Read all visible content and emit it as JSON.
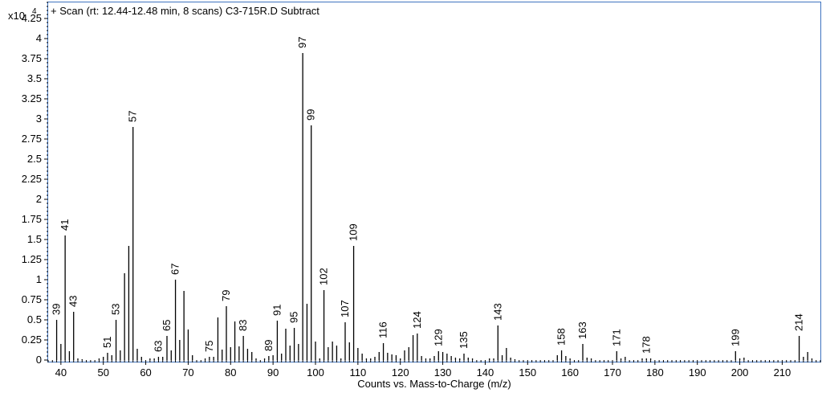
{
  "chart_data": {
    "type": "bar",
    "title": "+ Scan (rt: 12.44-12.48 min, 8 scans) C3-715R.D  Subtract",
    "xlabel": "Counts vs. Mass-to-Charge (m/z)",
    "ylabel": "",
    "y_multiplier_label": "x10",
    "y_multiplier_exponent": "4",
    "xlim": [
      37,
      219
    ],
    "ylim": [
      0,
      4.45
    ],
    "x_ticks": [
      40,
      50,
      60,
      70,
      80,
      90,
      100,
      110,
      120,
      130,
      140,
      150,
      160,
      170,
      180,
      190,
      200,
      210
    ],
    "y_ticks": [
      0,
      0.25,
      0.5,
      0.75,
      1,
      1.25,
      1.5,
      1.75,
      2,
      2.25,
      2.5,
      2.75,
      3,
      3.25,
      3.5,
      3.75,
      4,
      4.25
    ],
    "grid": false,
    "legend": "none",
    "peaks": [
      {
        "mz": 39,
        "intensity": 0.5,
        "label": "39"
      },
      {
        "mz": 40,
        "intensity": 0.2
      },
      {
        "mz": 41,
        "intensity": 1.55,
        "label": "41"
      },
      {
        "mz": 42,
        "intensity": 0.11
      },
      {
        "mz": 43,
        "intensity": 0.6,
        "label": "43"
      },
      {
        "mz": 44,
        "intensity": 0.02
      },
      {
        "mz": 45,
        "intensity": 0.01
      },
      {
        "mz": 49,
        "intensity": 0.02
      },
      {
        "mz": 50,
        "intensity": 0.04
      },
      {
        "mz": 51,
        "intensity": 0.09,
        "label": "51"
      },
      {
        "mz": 52,
        "intensity": 0.06
      },
      {
        "mz": 53,
        "intensity": 0.5,
        "label": "53"
      },
      {
        "mz": 54,
        "intensity": 0.12
      },
      {
        "mz": 55,
        "intensity": 1.08
      },
      {
        "mz": 56,
        "intensity": 1.42
      },
      {
        "mz": 57,
        "intensity": 2.9,
        "label": "57"
      },
      {
        "mz": 58,
        "intensity": 0.14
      },
      {
        "mz": 59,
        "intensity": 0.04
      },
      {
        "mz": 61,
        "intensity": 0.02
      },
      {
        "mz": 62,
        "intensity": 0.02
      },
      {
        "mz": 63,
        "intensity": 0.04,
        "label": "63"
      },
      {
        "mz": 64,
        "intensity": 0.04
      },
      {
        "mz": 65,
        "intensity": 0.3,
        "label": "65"
      },
      {
        "mz": 66,
        "intensity": 0.12
      },
      {
        "mz": 67,
        "intensity": 1.0,
        "label": "67"
      },
      {
        "mz": 68,
        "intensity": 0.25
      },
      {
        "mz": 69,
        "intensity": 0.86
      },
      {
        "mz": 70,
        "intensity": 0.38
      },
      {
        "mz": 71,
        "intensity": 0.06
      },
      {
        "mz": 74,
        "intensity": 0.02
      },
      {
        "mz": 75,
        "intensity": 0.04,
        "label": "75"
      },
      {
        "mz": 76,
        "intensity": 0.04
      },
      {
        "mz": 77,
        "intensity": 0.53
      },
      {
        "mz": 78,
        "intensity": 0.13
      },
      {
        "mz": 79,
        "intensity": 0.67,
        "label": "79"
      },
      {
        "mz": 80,
        "intensity": 0.16
      },
      {
        "mz": 81,
        "intensity": 0.48
      },
      {
        "mz": 82,
        "intensity": 0.17
      },
      {
        "mz": 83,
        "intensity": 0.3,
        "label": "83"
      },
      {
        "mz": 84,
        "intensity": 0.14
      },
      {
        "mz": 85,
        "intensity": 0.1
      },
      {
        "mz": 86,
        "intensity": 0.02
      },
      {
        "mz": 88,
        "intensity": 0.02
      },
      {
        "mz": 89,
        "intensity": 0.05,
        "label": "89"
      },
      {
        "mz": 90,
        "intensity": 0.06
      },
      {
        "mz": 91,
        "intensity": 0.49,
        "label": "91"
      },
      {
        "mz": 92,
        "intensity": 0.08
      },
      {
        "mz": 93,
        "intensity": 0.39
      },
      {
        "mz": 94,
        "intensity": 0.18
      },
      {
        "mz": 95,
        "intensity": 0.4,
        "label": "95"
      },
      {
        "mz": 96,
        "intensity": 0.2
      },
      {
        "mz": 97,
        "intensity": 3.82,
        "label": "97"
      },
      {
        "mz": 98,
        "intensity": 0.7
      },
      {
        "mz": 99,
        "intensity": 2.92,
        "label": "99"
      },
      {
        "mz": 100,
        "intensity": 0.23
      },
      {
        "mz": 101,
        "intensity": 0.02
      },
      {
        "mz": 102,
        "intensity": 0.87,
        "label": "102"
      },
      {
        "mz": 103,
        "intensity": 0.16
      },
      {
        "mz": 104,
        "intensity": 0.23
      },
      {
        "mz": 105,
        "intensity": 0.18
      },
      {
        "mz": 106,
        "intensity": 0.02
      },
      {
        "mz": 107,
        "intensity": 0.47,
        "label": "107"
      },
      {
        "mz": 108,
        "intensity": 0.22
      },
      {
        "mz": 109,
        "intensity": 1.42,
        "label": "109"
      },
      {
        "mz": 110,
        "intensity": 0.15
      },
      {
        "mz": 111,
        "intensity": 0.08
      },
      {
        "mz": 112,
        "intensity": 0.02
      },
      {
        "mz": 113,
        "intensity": 0.02
      },
      {
        "mz": 114,
        "intensity": 0.04
      },
      {
        "mz": 115,
        "intensity": 0.1
      },
      {
        "mz": 116,
        "intensity": 0.21,
        "label": "116"
      },
      {
        "mz": 117,
        "intensity": 0.09
      },
      {
        "mz": 118,
        "intensity": 0.07
      },
      {
        "mz": 119,
        "intensity": 0.06
      },
      {
        "mz": 120,
        "intensity": 0.02
      },
      {
        "mz": 121,
        "intensity": 0.12
      },
      {
        "mz": 122,
        "intensity": 0.16
      },
      {
        "mz": 123,
        "intensity": 0.31
      },
      {
        "mz": 124,
        "intensity": 0.33,
        "label": "124"
      },
      {
        "mz": 125,
        "intensity": 0.05
      },
      {
        "mz": 126,
        "intensity": 0.02
      },
      {
        "mz": 127,
        "intensity": 0.02
      },
      {
        "mz": 128,
        "intensity": 0.05
      },
      {
        "mz": 129,
        "intensity": 0.11,
        "label": "129"
      },
      {
        "mz": 130,
        "intensity": 0.1
      },
      {
        "mz": 131,
        "intensity": 0.08
      },
      {
        "mz": 132,
        "intensity": 0.05
      },
      {
        "mz": 133,
        "intensity": 0.03
      },
      {
        "mz": 134,
        "intensity": 0.02
      },
      {
        "mz": 135,
        "intensity": 0.08,
        "label": "135"
      },
      {
        "mz": 136,
        "intensity": 0.03
      },
      {
        "mz": 137,
        "intensity": 0.02
      },
      {
        "mz": 141,
        "intensity": 0.02
      },
      {
        "mz": 142,
        "intensity": 0.02
      },
      {
        "mz": 143,
        "intensity": 0.43,
        "label": "143"
      },
      {
        "mz": 144,
        "intensity": 0.06
      },
      {
        "mz": 145,
        "intensity": 0.15
      },
      {
        "mz": 146,
        "intensity": 0.03
      },
      {
        "mz": 147,
        "intensity": 0.01
      },
      {
        "mz": 157,
        "intensity": 0.06
      },
      {
        "mz": 158,
        "intensity": 0.12,
        "label": "158"
      },
      {
        "mz": 159,
        "intensity": 0.05
      },
      {
        "mz": 160,
        "intensity": 0.02
      },
      {
        "mz": 163,
        "intensity": 0.2,
        "label": "163"
      },
      {
        "mz": 164,
        "intensity": 0.03
      },
      {
        "mz": 165,
        "intensity": 0.02
      },
      {
        "mz": 171,
        "intensity": 0.11,
        "label": "171"
      },
      {
        "mz": 172,
        "intensity": 0.02
      },
      {
        "mz": 173,
        "intensity": 0.04
      },
      {
        "mz": 177,
        "intensity": 0.02
      },
      {
        "mz": 178,
        "intensity": 0.02,
        "label": "178"
      },
      {
        "mz": 179,
        "intensity": 0.02
      },
      {
        "mz": 199,
        "intensity": 0.11,
        "label": "199"
      },
      {
        "mz": 200,
        "intensity": 0.02
      },
      {
        "mz": 201,
        "intensity": 0.03
      },
      {
        "mz": 214,
        "intensity": 0.3,
        "label": "214"
      },
      {
        "mz": 215,
        "intensity": 0.04
      },
      {
        "mz": 216,
        "intensity": 0.1
      },
      {
        "mz": 217,
        "intensity": 0.02
      }
    ]
  }
}
